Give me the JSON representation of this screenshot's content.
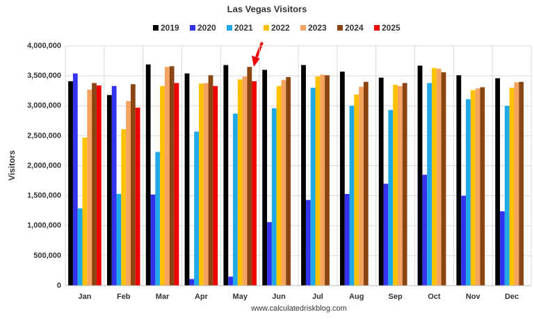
{
  "chart_data": {
    "type": "bar",
    "title": "Las Vegas Visitors",
    "y_label": "Visitors",
    "source": "www.calculatedriskblog.com",
    "categories": [
      "Jan",
      "Feb",
      "Mar",
      "Apr",
      "May",
      "Jun",
      "Jul",
      "Aug",
      "Sep",
      "Oct",
      "Nov",
      "Dec"
    ],
    "series": [
      {
        "name": "2019",
        "color": "#000000",
        "values": [
          3410000,
          3180000,
          3690000,
          3540000,
          3680000,
          3600000,
          3680000,
          3570000,
          3470000,
          3670000,
          3510000,
          3460000
        ]
      },
      {
        "name": "2020",
        "color": "#3333ee",
        "values": [
          3540000,
          3330000,
          1520000,
          110000,
          150000,
          1060000,
          1430000,
          1530000,
          1700000,
          1850000,
          1500000,
          1240000
        ]
      },
      {
        "name": "2021",
        "color": "#1fa9e8",
        "values": [
          1290000,
          1530000,
          2230000,
          2570000,
          2870000,
          2960000,
          3300000,
          3000000,
          2930000,
          3380000,
          3110000,
          3000000
        ]
      },
      {
        "name": "2022",
        "color": "#ffc000",
        "values": [
          2470000,
          2610000,
          3330000,
          3370000,
          3440000,
          3330000,
          3490000,
          3190000,
          3350000,
          3630000,
          3260000,
          3300000
        ]
      },
      {
        "name": "2023",
        "color": "#f4a460",
        "values": [
          3270000,
          3080000,
          3650000,
          3380000,
          3490000,
          3430000,
          3520000,
          3320000,
          3330000,
          3620000,
          3290000,
          3390000
        ]
      },
      {
        "name": "2024",
        "color": "#8b4513",
        "values": [
          3380000,
          3360000,
          3660000,
          3510000,
          3650000,
          3480000,
          3510000,
          3400000,
          3380000,
          3560000,
          3310000,
          3400000
        ]
      },
      {
        "name": "2025",
        "color": "#ee0000",
        "values": [
          3340000,
          2970000,
          3380000,
          3330000,
          3410000,
          null,
          null,
          null,
          null,
          null,
          null,
          null
        ]
      }
    ],
    "ylim": [
      0,
      4000000
    ],
    "yticks": [
      0,
      {
        "value": 500000,
        "label": "500,000"
      },
      {
        "value": 1000000,
        "label": "1,000,000"
      },
      {
        "value": 1500000,
        "label": "1,500,000"
      },
      {
        "value": 2000000,
        "label": "2,000,000"
      },
      {
        "value": 2500000,
        "label": "2,500,000"
      },
      {
        "value": 3000000,
        "label": "3,000,000"
      },
      {
        "value": 3500000,
        "label": "3,500,000"
      },
      {
        "value": 4000000,
        "label": "4,000,000"
      }
    ],
    "grid": true
  }
}
